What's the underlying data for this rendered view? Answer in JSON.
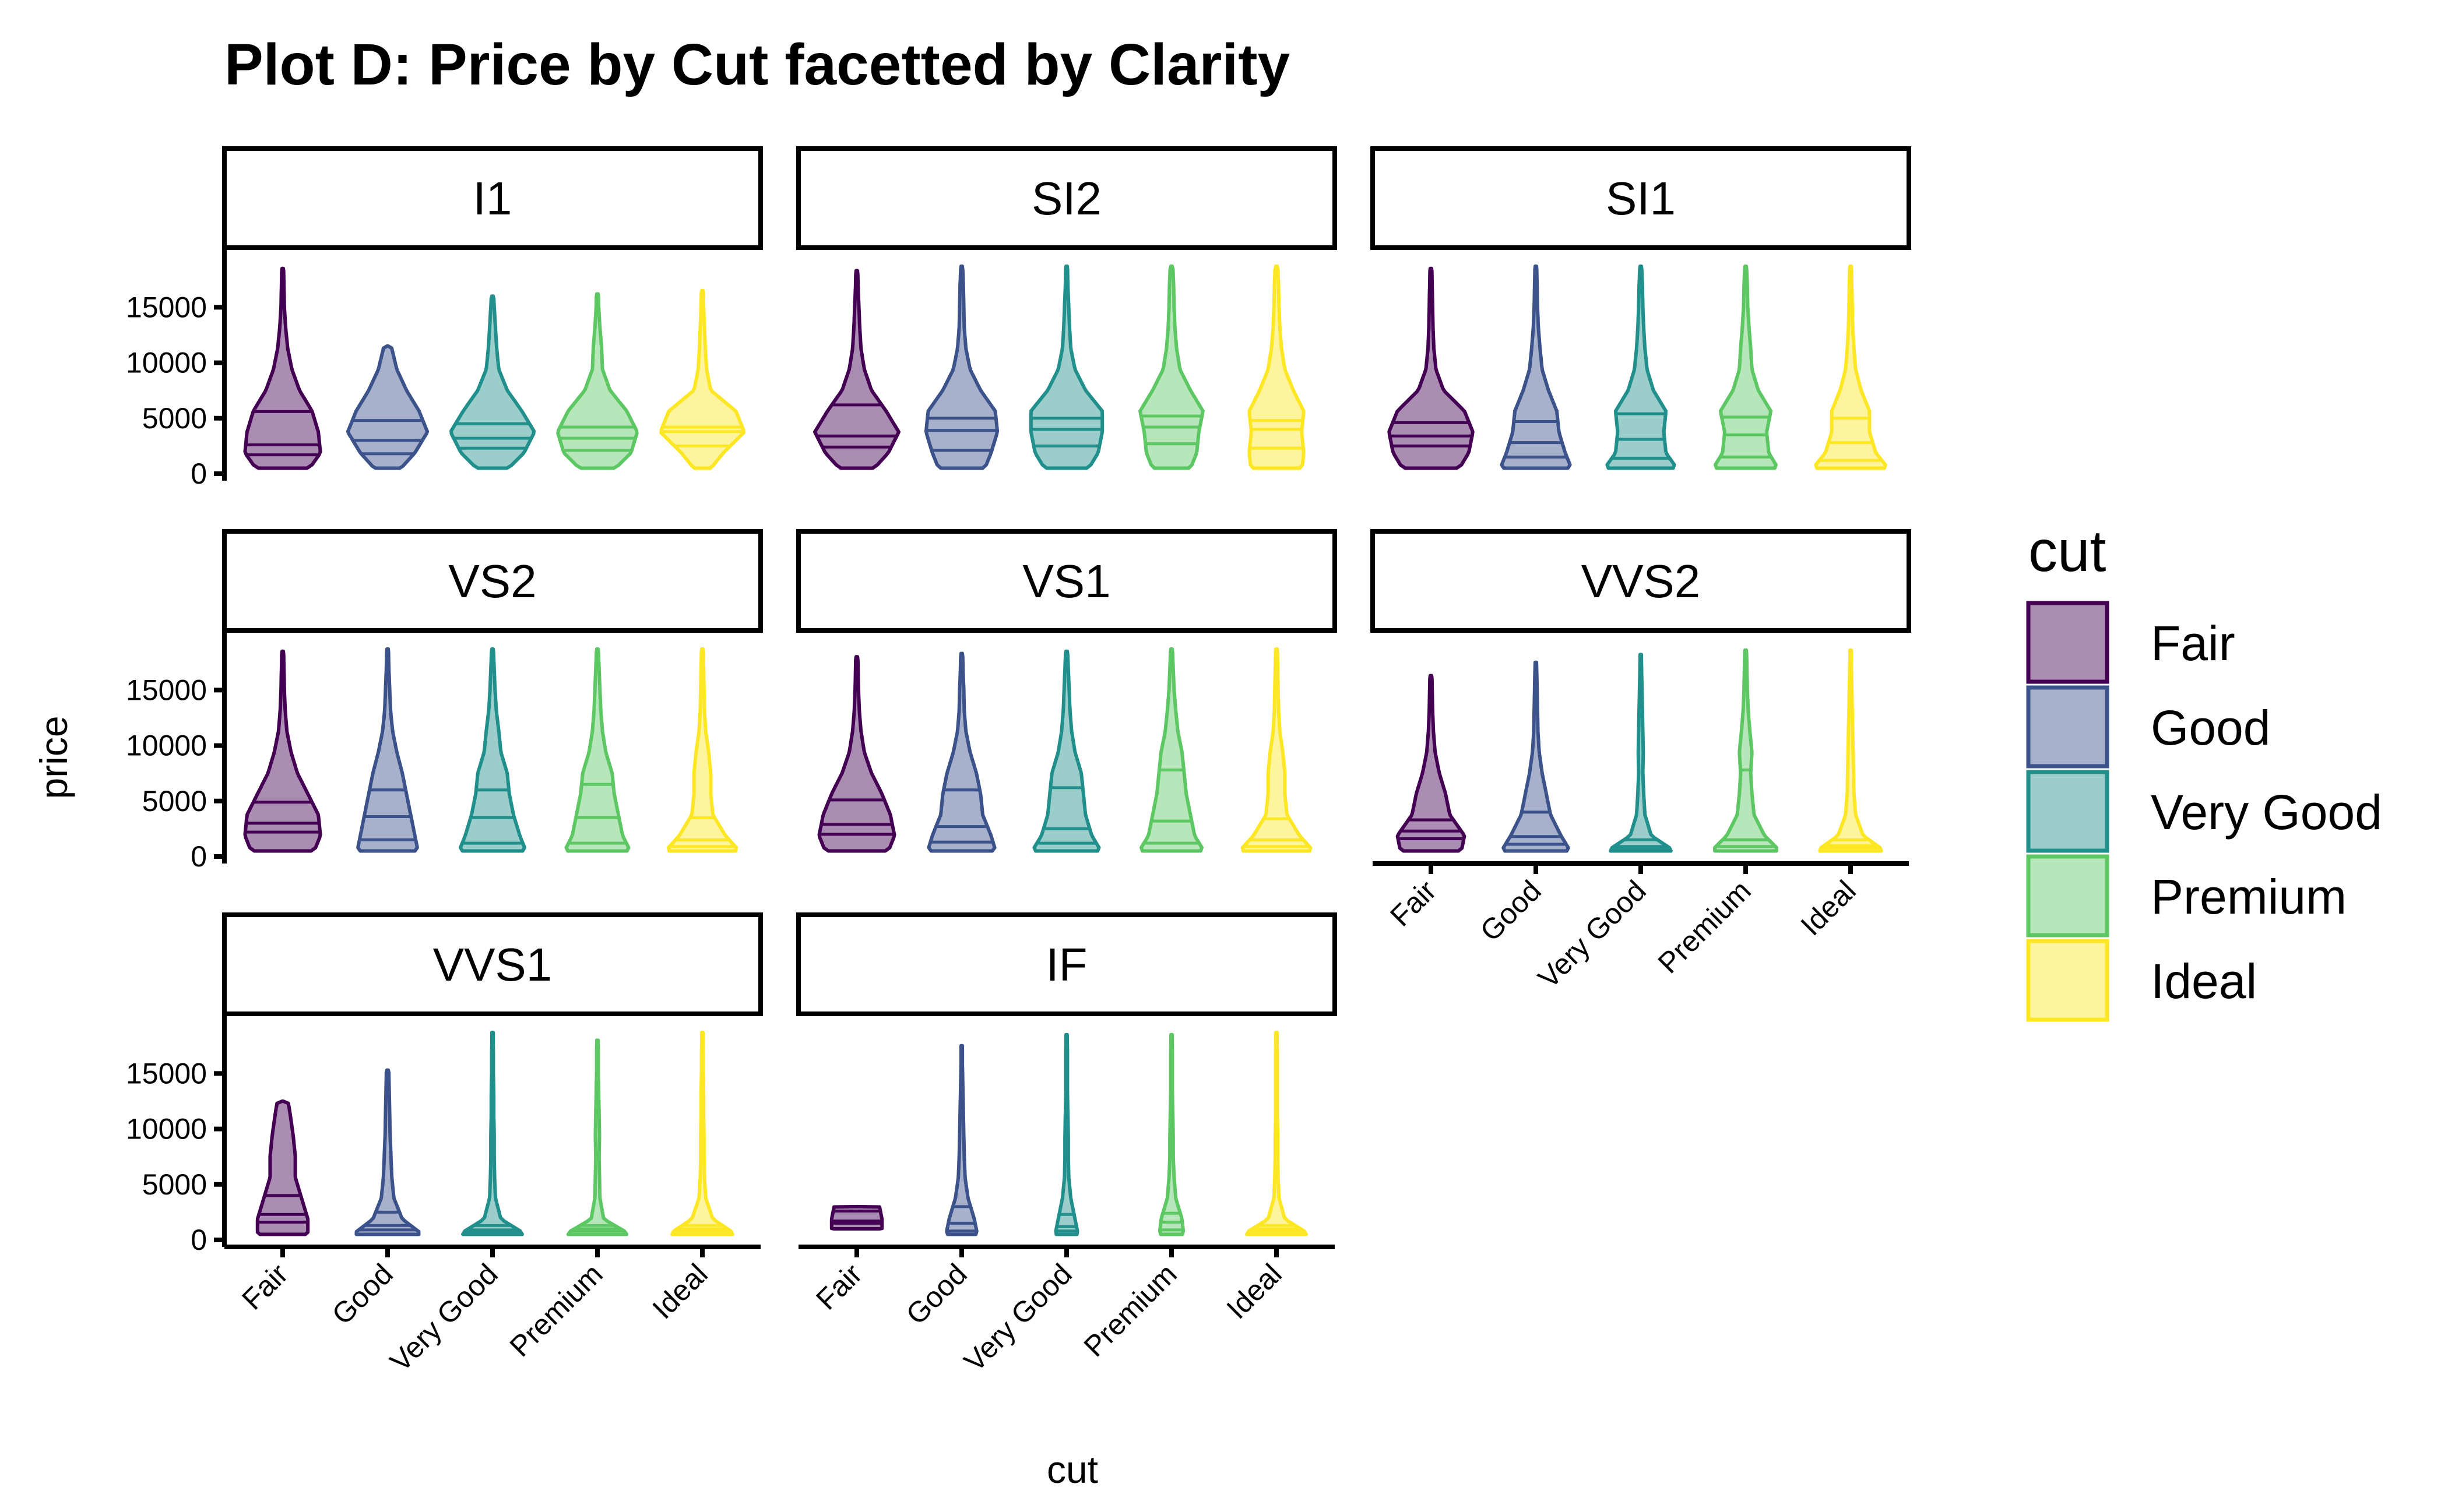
{
  "chart_data": {
    "type": "violin",
    "title": "Plot D: Price by Cut facetted by Clarity",
    "xlabel": "cut",
    "ylabel": "price",
    "ylim": [
      0,
      18800
    ],
    "yticks": [
      0,
      5000,
      10000,
      15000
    ],
    "categories": [
      "Fair",
      "Good",
      "Very Good",
      "Premium",
      "Ideal"
    ],
    "legend": {
      "title": "cut",
      "position": "right"
    },
    "colors": {
      "Fair": "#440154",
      "Good": "#3B528B",
      "Very Good": "#21908C",
      "Premium": "#5DC863",
      "Ideal": "#FDE725"
    },
    "fill_alpha": 0.45,
    "facets": [
      {
        "panel": "I1",
        "violins": [
          {
            "cut": "Fair",
            "min": 500,
            "max": 18500,
            "q1": 1700,
            "median": 2600,
            "q3": 5600,
            "widths": [
              0.55,
              0.9,
              0.85,
              0.7,
              0.4,
              0.22,
              0.12,
              0.07,
              0.04,
              0.03,
              0.02
            ]
          },
          {
            "cut": "Good",
            "min": 500,
            "max": 11500,
            "q1": 1800,
            "median": 3000,
            "q3": 4800,
            "widths": [
              0.2,
              0.65,
              0.95,
              0.75,
              0.45,
              0.22,
              0.1,
              0.05,
              0.03,
              0.02,
              0.01
            ]
          },
          {
            "cut": "Very Good",
            "min": 500,
            "max": 16000,
            "q1": 2300,
            "median": 3200,
            "q3": 4500,
            "widths": [
              0.25,
              0.75,
              1.0,
              0.7,
              0.35,
              0.15,
              0.1,
              0.07,
              0.04,
              0.02,
              0.01
            ]
          },
          {
            "cut": "Premium",
            "min": 500,
            "max": 16200,
            "q1": 2100,
            "median": 3200,
            "q3": 4200,
            "widths": [
              0.3,
              0.8,
              0.95,
              0.7,
              0.3,
              0.12,
              0.1,
              0.06,
              0.03,
              0.02,
              0.01
            ]
          },
          {
            "cut": "Ideal",
            "min": 500,
            "max": 16500,
            "q1": 2500,
            "median": 3800,
            "q3": 4200,
            "widths": [
              0.1,
              0.5,
              1.0,
              0.8,
              0.2,
              0.1,
              0.07,
              0.05,
              0.03,
              0.02,
              0.01
            ]
          }
        ]
      },
      {
        "panel": "SI2",
        "violins": [
          {
            "cut": "Fair",
            "min": 500,
            "max": 18300,
            "q1": 2400,
            "median": 3400,
            "q3": 6200,
            "widths": [
              0.3,
              0.75,
              1.0,
              0.7,
              0.35,
              0.18,
              0.1,
              0.07,
              0.05,
              0.03,
              0.02
            ]
          },
          {
            "cut": "Good",
            "min": 500,
            "max": 18700,
            "q1": 2100,
            "median": 3900,
            "q3": 5000,
            "widths": [
              0.5,
              0.7,
              0.85,
              0.8,
              0.45,
              0.2,
              0.1,
              0.06,
              0.05,
              0.04,
              0.02
            ]
          },
          {
            "cut": "Very Good",
            "min": 500,
            "max": 18700,
            "q1": 2500,
            "median": 4000,
            "q3": 5000,
            "widths": [
              0.45,
              0.75,
              0.85,
              0.85,
              0.45,
              0.2,
              0.1,
              0.07,
              0.05,
              0.03,
              0.02
            ]
          },
          {
            "cut": "Premium",
            "min": 500,
            "max": 18700,
            "q1": 2700,
            "median": 4200,
            "q3": 5200,
            "widths": [
              0.4,
              0.6,
              0.65,
              0.75,
              0.45,
              0.2,
              0.12,
              0.08,
              0.06,
              0.05,
              0.03
            ]
          },
          {
            "cut": "Ideal",
            "min": 500,
            "max": 18700,
            "q1": 2300,
            "median": 4000,
            "q3": 4800,
            "widths": [
              0.6,
              0.65,
              0.6,
              0.65,
              0.4,
              0.2,
              0.12,
              0.08,
              0.06,
              0.05,
              0.03
            ]
          }
        ]
      },
      {
        "panel": "SI1",
        "violins": [
          {
            "cut": "Fair",
            "min": 500,
            "max": 18500,
            "q1": 2500,
            "median": 3400,
            "q3": 4600,
            "widths": [
              0.6,
              0.9,
              1.0,
              0.8,
              0.3,
              0.12,
              0.07,
              0.05,
              0.04,
              0.03,
              0.02
            ]
          },
          {
            "cut": "Good",
            "min": 500,
            "max": 18700,
            "q1": 1500,
            "median": 2800,
            "q3": 4700,
            "widths": [
              0.9,
              0.7,
              0.55,
              0.5,
              0.3,
              0.15,
              0.1,
              0.06,
              0.04,
              0.03,
              0.02
            ]
          },
          {
            "cut": "Very Good",
            "min": 500,
            "max": 18700,
            "q1": 1400,
            "median": 3100,
            "q3": 5400,
            "widths": [
              0.95,
              0.6,
              0.55,
              0.6,
              0.3,
              0.15,
              0.1,
              0.07,
              0.05,
              0.04,
              0.02
            ]
          },
          {
            "cut": "Premium",
            "min": 500,
            "max": 18700,
            "q1": 1500,
            "median": 3500,
            "q3": 5100,
            "widths": [
              0.85,
              0.55,
              0.5,
              0.6,
              0.3,
              0.15,
              0.12,
              0.08,
              0.05,
              0.04,
              0.02
            ]
          },
          {
            "cut": "Ideal",
            "min": 500,
            "max": 18700,
            "q1": 1200,
            "median": 2800,
            "q3": 5000,
            "widths": [
              1.0,
              0.6,
              0.45,
              0.45,
              0.25,
              0.12,
              0.08,
              0.05,
              0.04,
              0.03,
              0.02
            ]
          }
        ]
      },
      {
        "panel": "VS2",
        "violins": [
          {
            "cut": "Fair",
            "min": 500,
            "max": 18500,
            "q1": 2200,
            "median": 3000,
            "q3": 4900,
            "widths": [
              0.7,
              0.9,
              0.85,
              0.6,
              0.35,
              0.2,
              0.1,
              0.06,
              0.04,
              0.03,
              0.02
            ]
          },
          {
            "cut": "Good",
            "min": 500,
            "max": 18700,
            "q1": 1500,
            "median": 3600,
            "q3": 6000,
            "widths": [
              0.75,
              0.65,
              0.55,
              0.45,
              0.35,
              0.22,
              0.12,
              0.07,
              0.05,
              0.03,
              0.02
            ]
          },
          {
            "cut": "Very Good",
            "min": 500,
            "max": 18700,
            "q1": 1200,
            "median": 3500,
            "q3": 6000,
            "widths": [
              0.85,
              0.65,
              0.5,
              0.4,
              0.35,
              0.2,
              0.15,
              0.09,
              0.06,
              0.04,
              0.02
            ]
          },
          {
            "cut": "Premium",
            "min": 500,
            "max": 18700,
            "q1": 1200,
            "median": 3500,
            "q3": 6500,
            "widths": [
              0.85,
              0.6,
              0.5,
              0.4,
              0.35,
              0.2,
              0.12,
              0.08,
              0.06,
              0.04,
              0.02
            ]
          },
          {
            "cut": "Ideal",
            "min": 500,
            "max": 18700,
            "q1": 900,
            "median": 1500,
            "q3": 3500,
            "widths": [
              1.0,
              0.55,
              0.25,
              0.2,
              0.2,
              0.15,
              0.08,
              0.05,
              0.04,
              0.03,
              0.02
            ]
          }
        ]
      },
      {
        "panel": "VS1",
        "violins": [
          {
            "cut": "Fair",
            "min": 500,
            "max": 18000,
            "q1": 2000,
            "median": 2900,
            "q3": 5100,
            "widths": [
              0.7,
              0.9,
              0.8,
              0.6,
              0.35,
              0.18,
              0.1,
              0.06,
              0.04,
              0.03,
              0.02
            ]
          },
          {
            "cut": "Good",
            "min": 500,
            "max": 18300,
            "q1": 1300,
            "median": 2700,
            "q3": 6000,
            "widths": [
              0.85,
              0.7,
              0.5,
              0.45,
              0.35,
              0.2,
              0.1,
              0.06,
              0.05,
              0.03,
              0.02
            ]
          },
          {
            "cut": "Very Good",
            "min": 500,
            "max": 18500,
            "q1": 1200,
            "median": 2500,
            "q3": 6200,
            "widths": [
              0.9,
              0.6,
              0.45,
              0.4,
              0.35,
              0.2,
              0.12,
              0.08,
              0.06,
              0.04,
              0.02
            ]
          },
          {
            "cut": "Premium",
            "min": 500,
            "max": 18700,
            "q1": 1200,
            "median": 3200,
            "q3": 7800,
            "widths": [
              0.85,
              0.55,
              0.45,
              0.35,
              0.3,
              0.25,
              0.15,
              0.1,
              0.06,
              0.04,
              0.02
            ]
          },
          {
            "cut": "Ideal",
            "min": 500,
            "max": 18700,
            "q1": 900,
            "median": 1500,
            "q3": 3400,
            "widths": [
              1.0,
              0.55,
              0.25,
              0.2,
              0.2,
              0.15,
              0.08,
              0.05,
              0.04,
              0.03,
              0.02
            ]
          }
        ]
      },
      {
        "panel": "VVS2",
        "violins": [
          {
            "cut": "Fair",
            "min": 500,
            "max": 16300,
            "q1": 1600,
            "median": 2300,
            "q3": 3300,
            "widths": [
              0.7,
              0.8,
              0.45,
              0.35,
              0.2,
              0.1,
              0.06,
              0.04,
              0.03,
              0.02,
              0.01
            ]
          },
          {
            "cut": "Good",
            "min": 500,
            "max": 17500,
            "q1": 1100,
            "median": 1800,
            "q3": 4000,
            "widths": [
              0.9,
              0.6,
              0.35,
              0.25,
              0.15,
              0.08,
              0.05,
              0.04,
              0.03,
              0.02,
              0.01
            ]
          },
          {
            "cut": "Very Good",
            "min": 500,
            "max": 18200,
            "q1": 700,
            "median": 900,
            "q3": 1500,
            "widths": [
              1.0,
              0.25,
              0.1,
              0.07,
              0.05,
              0.06,
              0.05,
              0.04,
              0.03,
              0.02,
              0.01
            ]
          },
          {
            "cut": "Premium",
            "min": 500,
            "max": 18600,
            "q1": 900,
            "median": 1500,
            "q3": 7800,
            "widths": [
              0.95,
              0.45,
              0.2,
              0.15,
              0.12,
              0.15,
              0.1,
              0.06,
              0.04,
              0.03,
              0.02
            ]
          },
          {
            "cut": "Ideal",
            "min": 500,
            "max": 18600,
            "q1": 800,
            "median": 1000,
            "q3": 1500,
            "widths": [
              1.0,
              0.3,
              0.12,
              0.08,
              0.07,
              0.06,
              0.05,
              0.04,
              0.03,
              0.02,
              0.01
            ]
          }
        ]
      },
      {
        "panel": "VVS1",
        "violins": [
          {
            "cut": "Fair",
            "min": 500,
            "max": 12500,
            "q1": 1600,
            "median": 2300,
            "q3": 4000,
            "widths": [
              0.6,
              0.6,
              0.45,
              0.3,
              0.3,
              0.25,
              0.18,
              0.1,
              0.03,
              0.01,
              0.01
            ]
          },
          {
            "cut": "Good",
            "min": 500,
            "max": 15300,
            "q1": 900,
            "median": 1300,
            "q3": 2500,
            "widths": [
              1.0,
              0.35,
              0.15,
              0.1,
              0.08,
              0.06,
              0.05,
              0.04,
              0.03,
              0.02,
              0.01
            ]
          },
          {
            "cut": "Very Good",
            "min": 500,
            "max": 18700,
            "q1": 700,
            "median": 900,
            "q3": 1300,
            "widths": [
              1.0,
              0.2,
              0.07,
              0.05,
              0.04,
              0.04,
              0.03,
              0.03,
              0.02,
              0.02,
              0.01
            ]
          },
          {
            "cut": "Premium",
            "min": 500,
            "max": 18000,
            "q1": 800,
            "median": 1000,
            "q3": 1300,
            "widths": [
              1.0,
              0.15,
              0.06,
              0.05,
              0.04,
              0.05,
              0.04,
              0.03,
              0.02,
              0.02,
              0.01
            ]
          },
          {
            "cut": "Ideal",
            "min": 500,
            "max": 18700,
            "q1": 800,
            "median": 1000,
            "q3": 1300,
            "widths": [
              1.0,
              0.25,
              0.08,
              0.05,
              0.04,
              0.04,
              0.03,
              0.03,
              0.02,
              0.02,
              0.01
            ]
          }
        ]
      },
      {
        "panel": "IF",
        "violins": [
          {
            "cut": "Fair",
            "min": 1000,
            "max": 3000,
            "q1": 1500,
            "median": 1700,
            "q3": 2600,
            "widths": [
              0.6,
              0.6,
              0.5,
              0.3,
              0.0,
              0.0,
              0.0,
              0.0,
              0.0,
              0.0,
              0.0
            ]
          },
          {
            "cut": "Good",
            "min": 500,
            "max": 17500,
            "q1": 800,
            "median": 1500,
            "q3": 3000,
            "widths": [
              0.4,
              0.3,
              0.15,
              0.08,
              0.06,
              0.05,
              0.04,
              0.03,
              0.02,
              0.01,
              0.01
            ]
          },
          {
            "cut": "Very Good",
            "min": 500,
            "max": 18500,
            "q1": 800,
            "median": 1200,
            "q3": 2300,
            "widths": [
              0.3,
              0.2,
              0.1,
              0.05,
              0.04,
              0.04,
              0.03,
              0.02,
              0.02,
              0.02,
              0.01
            ]
          },
          {
            "cut": "Premium",
            "min": 500,
            "max": 18500,
            "q1": 900,
            "median": 1600,
            "q3": 2400,
            "widths": [
              0.3,
              0.25,
              0.1,
              0.06,
              0.04,
              0.04,
              0.03,
              0.02,
              0.02,
              0.02,
              0.01
            ]
          },
          {
            "cut": "Ideal",
            "min": 500,
            "max": 18700,
            "q1": 800,
            "median": 1000,
            "q3": 1300,
            "widths": [
              1.0,
              0.2,
              0.06,
              0.04,
              0.03,
              0.03,
              0.02,
              0.02,
              0.02,
              0.02,
              0.01
            ]
          }
        ]
      }
    ]
  }
}
